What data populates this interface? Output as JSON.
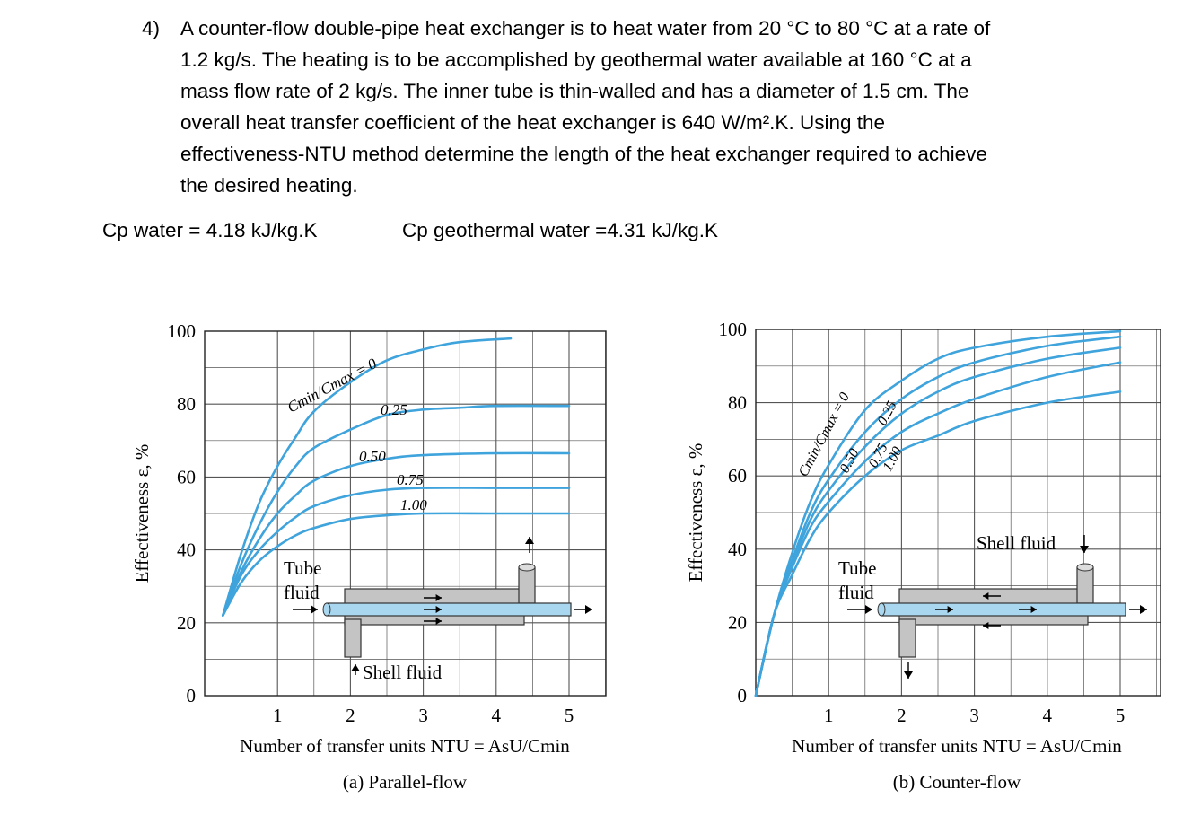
{
  "problem": {
    "number": "4)",
    "lines": [
      "A counter-flow double-pipe heat exchanger is to heat water from 20 °C to 80 °C at a rate of",
      "1.2 kg/s. The heating is to be accomplished by geothermal water available at 160 °C at a",
      "mass flow rate of 2 kg/s. The inner tube is thin-walled and has a diameter of 1.5 cm. The",
      "overall heat transfer coefficient of the heat exchanger is 640 W/m².K. Using the",
      "effectiveness-NTU method determine the length of the heat exchanger required to achieve",
      "the desired heating."
    ]
  },
  "properties": {
    "cp_water": "Cp water = 4.18 kJ/kg.K",
    "cp_geothermal": "Cp geothermal water =4.31 kJ/kg.K"
  },
  "colors": {
    "curve": "#3fa3dc",
    "grid": "#555555",
    "tube": "#a9d7ef",
    "shell": "#c4c4c4"
  },
  "chart_data": [
    {
      "type": "line",
      "title": "(a) Parallel-flow",
      "xlabel": "Number of transfer units NTU = AsU/Cmin",
      "ylabel": "Effectiveness ε, %",
      "xlim": [
        0,
        5.5
      ],
      "ylim": [
        0,
        100
      ],
      "xticks": [
        "1",
        "2",
        "3",
        "4",
        "5"
      ],
      "yticks": [
        "0",
        "20",
        "40",
        "60",
        "80",
        "100"
      ],
      "series": [
        {
          "name": "Cmin/Cmax = 0",
          "label": "Cmin/Cmax = 0",
          "x": [
            0.25,
            0.5,
            0.75,
            1,
            1.25,
            1.5,
            2,
            2.5,
            3,
            3.5,
            4.2
          ],
          "y": [
            22,
            39,
            53,
            63,
            71,
            78,
            86,
            92,
            95,
            97,
            98
          ]
        },
        {
          "name": "0.25",
          "label": "0.25",
          "x": [
            0.25,
            0.5,
            0.75,
            1,
            1.25,
            1.5,
            2,
            2.5,
            3,
            3.5,
            4,
            5
          ],
          "y": [
            22,
            36,
            47,
            56,
            63,
            68,
            73,
            77,
            78.5,
            79,
            79.5,
            79.5
          ]
        },
        {
          "name": "0.50",
          "label": "0.50",
          "x": [
            0.25,
            0.5,
            0.75,
            1,
            1.25,
            1.5,
            2,
            2.5,
            3,
            4,
            5
          ],
          "y": [
            22,
            34,
            43,
            50,
            55,
            59,
            63,
            65,
            66,
            66.5,
            66.5
          ]
        },
        {
          "name": "0.75",
          "label": "0.75",
          "x": [
            0.25,
            0.5,
            0.75,
            1,
            1.25,
            1.5,
            2,
            2.5,
            3,
            4,
            5
          ],
          "y": [
            22,
            33,
            40,
            45,
            49,
            52,
            55,
            56.5,
            57,
            57,
            57
          ]
        },
        {
          "name": "1.00",
          "label": "1.00",
          "x": [
            0.25,
            0.5,
            0.75,
            1,
            1.25,
            1.5,
            2,
            2.5,
            3,
            4,
            5
          ],
          "y": [
            22,
            31,
            37,
            41,
            44,
            46,
            48.5,
            49.5,
            50,
            50,
            50
          ]
        }
      ],
      "diagram": {
        "tube_label": [
          "Tube",
          "fluid"
        ],
        "shell_label": "Shell fluid"
      }
    },
    {
      "type": "line",
      "title": "(b) Counter-flow",
      "xlabel": "Number of transfer units NTU = AsU/Cmin",
      "ylabel": "Effectiveness ε, %",
      "xlim": [
        0,
        5.5
      ],
      "ylim": [
        0,
        100
      ],
      "xticks": [
        "1",
        "2",
        "3",
        "4",
        "5"
      ],
      "yticks": [
        "0",
        "20",
        "40",
        "60",
        "80",
        "100"
      ],
      "series": [
        {
          "name": "Cmin/Cmax = 0",
          "label": "Cmin/Cmax = 0",
          "x": [
            0,
            0.25,
            0.5,
            0.75,
            1,
            1.5,
            2,
            2.5,
            3,
            4,
            5
          ],
          "y": [
            0,
            22,
            39,
            53,
            63,
            78,
            86,
            92,
            95,
            98,
            99.5
          ]
        },
        {
          "name": "0.25",
          "label": "0.25",
          "x": [
            0,
            0.25,
            0.5,
            0.75,
            1,
            1.5,
            2,
            2.5,
            3,
            4,
            5
          ],
          "y": [
            0,
            22,
            37,
            50,
            59,
            72,
            81,
            87,
            91,
            95.5,
            98
          ]
        },
        {
          "name": "0.50",
          "label": "0.50",
          "x": [
            0,
            0.25,
            0.5,
            0.75,
            1,
            1.5,
            2,
            2.5,
            3,
            4,
            5
          ],
          "y": [
            0,
            22,
            36,
            48,
            56,
            68,
            77,
            83,
            87,
            92,
            95
          ]
        },
        {
          "name": "0.75",
          "label": "0.75",
          "x": [
            0,
            0.25,
            0.5,
            0.75,
            1,
            1.5,
            2,
            2.5,
            3,
            4,
            5
          ],
          "y": [
            0,
            22,
            35,
            46,
            53,
            64,
            72,
            77,
            81,
            87,
            91
          ]
        },
        {
          "name": "1.00",
          "label": "1.00",
          "x": [
            0,
            0.25,
            0.5,
            0.75,
            1,
            1.5,
            2,
            2.5,
            3,
            4,
            5
          ],
          "y": [
            0,
            22,
            33,
            43,
            50,
            60,
            67,
            71,
            75,
            80,
            83
          ]
        }
      ],
      "diagram": {
        "tube_label": [
          "Tube",
          "fluid"
        ],
        "shell_label": "Shell fluid"
      }
    }
  ]
}
